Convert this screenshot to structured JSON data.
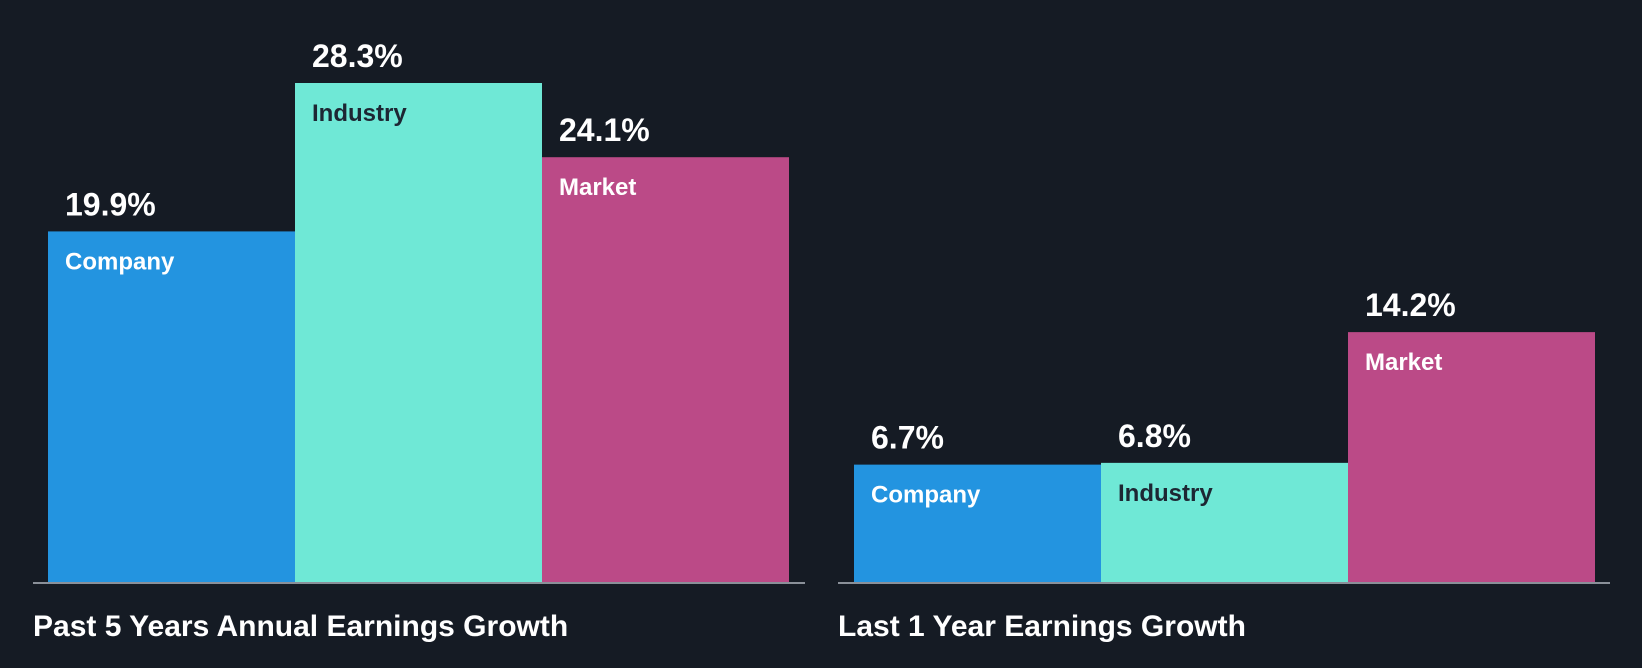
{
  "colors": {
    "background": "#151b24",
    "company": "#2394e0",
    "industry": "#6fe8d6",
    "market": "#bb4a87",
    "baseline": "#ffffff",
    "label_dark": "#1d2633",
    "label_light": "#ffffff"
  },
  "chart_data": [
    {
      "type": "bar",
      "title": "Past 5 Years Annual Earnings Growth",
      "categories": [
        "Company",
        "Industry",
        "Market"
      ],
      "values": [
        19.9,
        28.3,
        24.1
      ],
      "value_labels": [
        "19.9%",
        "28.3%",
        "24.1%"
      ],
      "unit": "%",
      "ylim": [
        0,
        28.3
      ]
    },
    {
      "type": "bar",
      "title": "Last 1 Year Earnings Growth",
      "categories": [
        "Company",
        "Industry",
        "Market"
      ],
      "values": [
        6.7,
        6.8,
        14.2
      ],
      "value_labels": [
        "6.7%",
        "6.8%",
        "14.2%"
      ],
      "unit": "%",
      "ylim": [
        0,
        28.3
      ]
    }
  ]
}
